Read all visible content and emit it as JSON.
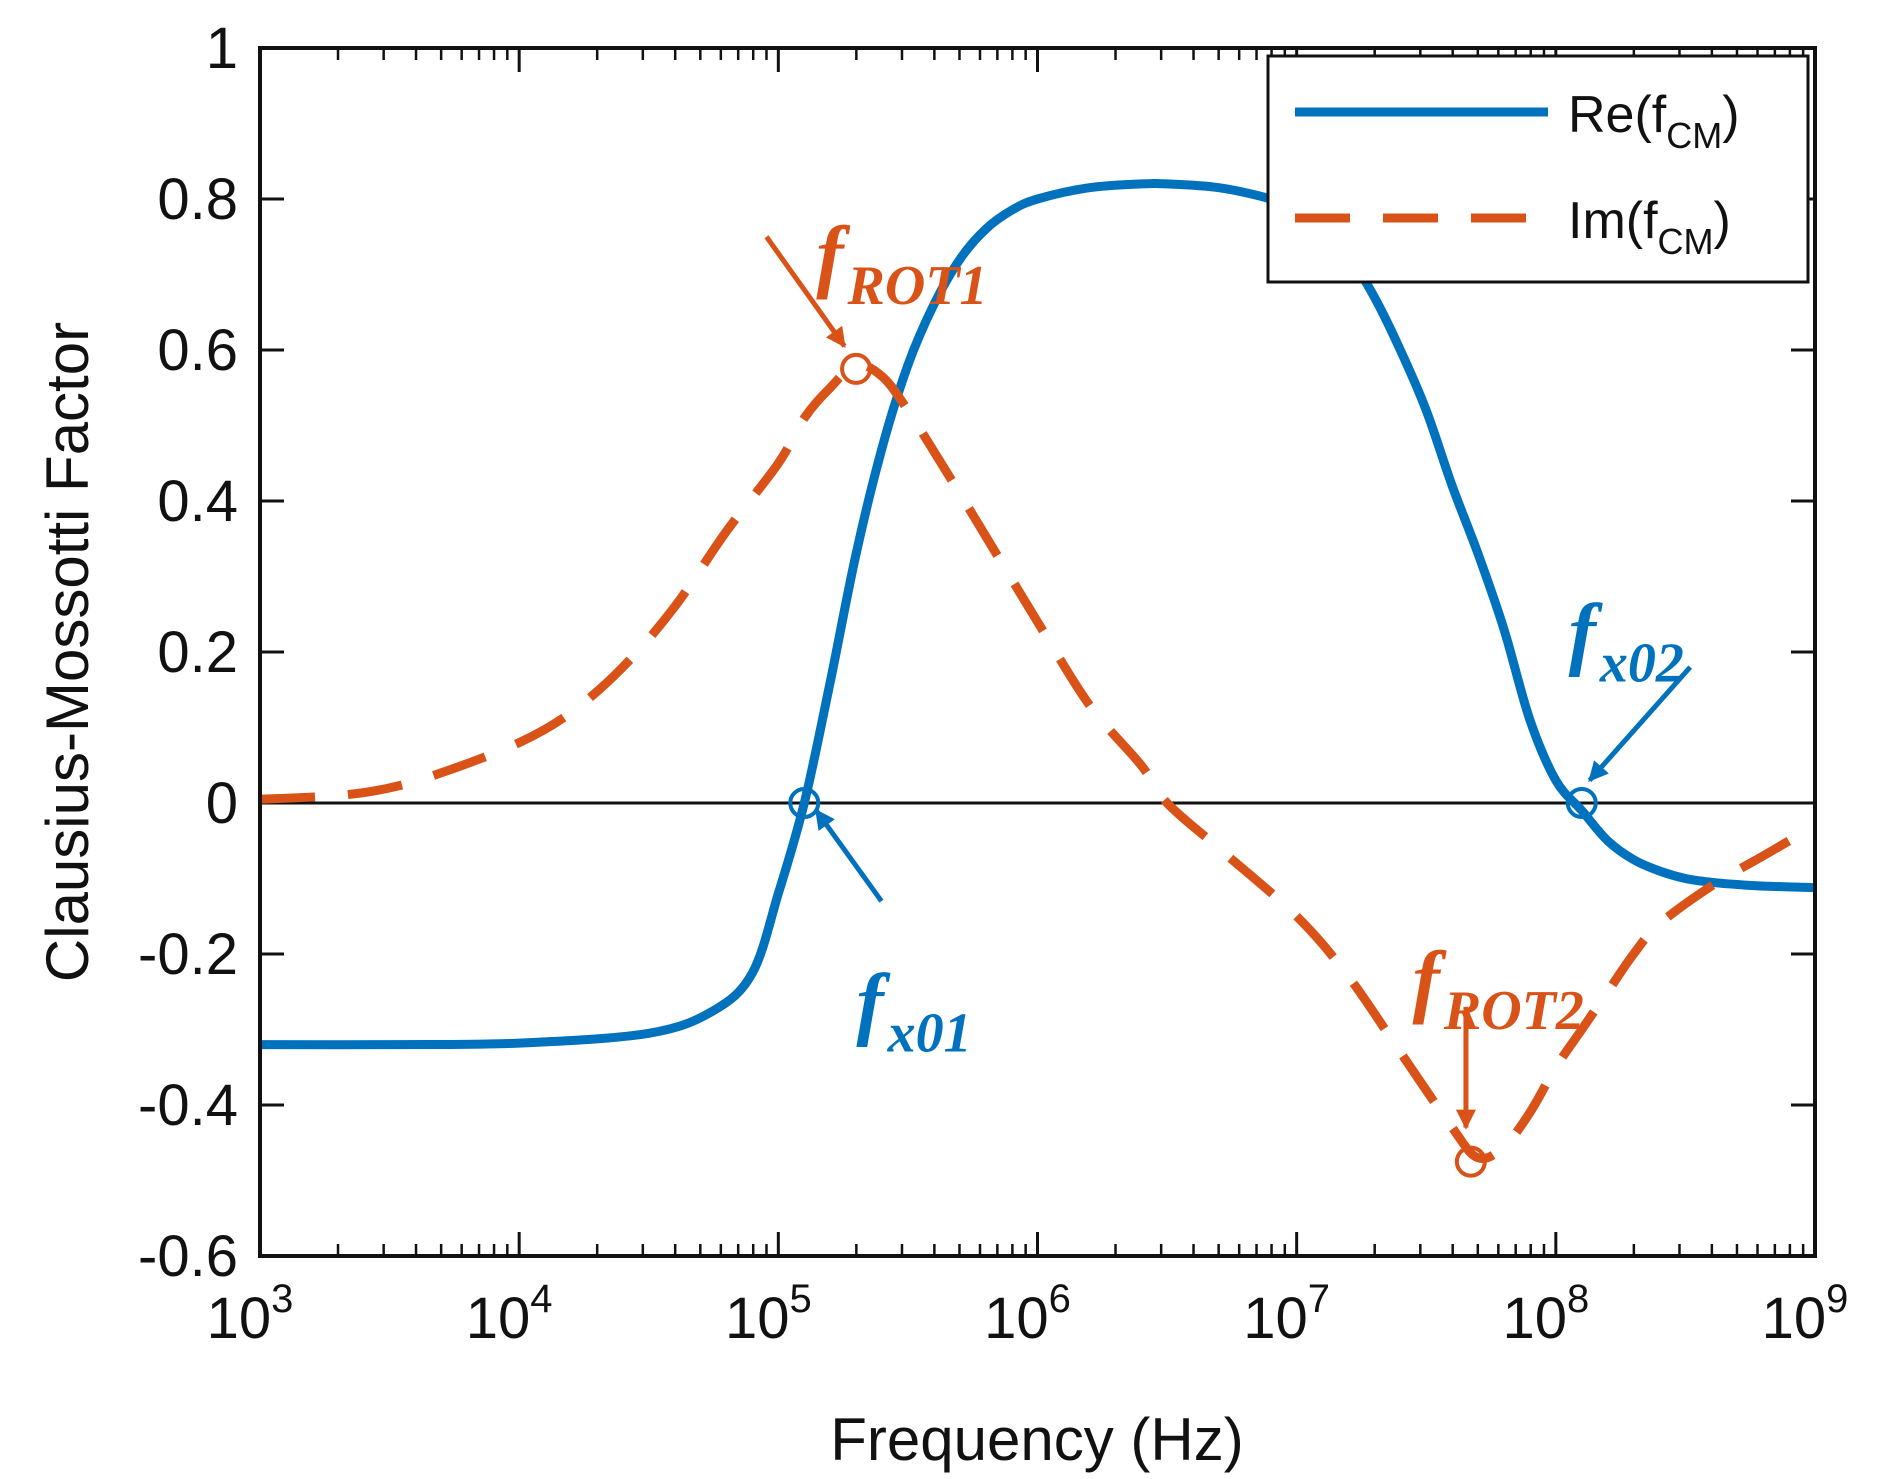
{
  "colors": {
    "re": "#0072BD",
    "im": "#D95319",
    "axis": "#111111"
  },
  "chart_data": {
    "type": "line",
    "xlabel": "Frequency (Hz)",
    "ylabel": "Clausius-Mossotti Factor",
    "xscale": "log",
    "xlim": [
      1000,
      1000000000
    ],
    "ylim": [
      -0.6,
      1
    ],
    "x_ticks": [
      {
        "value": 1000,
        "base": "10",
        "exp": "3"
      },
      {
        "value": 10000,
        "base": "10",
        "exp": "4"
      },
      {
        "value": 100000,
        "base": "10",
        "exp": "5"
      },
      {
        "value": 1000000,
        "base": "10",
        "exp": "6"
      },
      {
        "value": 10000000,
        "base": "10",
        "exp": "7"
      },
      {
        "value": 100000000,
        "base": "10",
        "exp": "8"
      },
      {
        "value": 1000000000,
        "base": "10",
        "exp": "9"
      }
    ],
    "y_ticks": [
      {
        "value": -0.6,
        "label": "-0.6"
      },
      {
        "value": -0.4,
        "label": "-0.4"
      },
      {
        "value": -0.2,
        "label": "-0.2"
      },
      {
        "value": 0,
        "label": "0"
      },
      {
        "value": 0.2,
        "label": "0.2"
      },
      {
        "value": 0.4,
        "label": "0.4"
      },
      {
        "value": 0.6,
        "label": "0.6"
      },
      {
        "value": 0.8,
        "label": "0.8"
      },
      {
        "value": 1,
        "label": "1"
      }
    ],
    "zero_line": true,
    "legend_position": "top-right",
    "series": [
      {
        "name_base": "Re(f",
        "name_sub": "CM",
        "name_end": ")",
        "style": "solid",
        "color": "#0072BD",
        "x": [
          1000,
          3162,
          10000,
          31623,
          56234,
          79433,
          100000,
          125900,
          158500,
          199500,
          251200,
          316200,
          398100,
          501200,
          631000,
          794300,
          1000000,
          1585000,
          2512000,
          3162000,
          5012000,
          7943000,
          10000000,
          12590000,
          15850000,
          19950000,
          25120000,
          31620000,
          39810000,
          50120000,
          63100000,
          79430000,
          100000000,
          125900000,
          158500000,
          199500000,
          251200000,
          316200000,
          398100000,
          501200000,
          631000000,
          1000000000
        ],
        "y": [
          -0.32,
          -0.32,
          -0.318,
          -0.305,
          -0.275,
          -0.225,
          -0.12,
          0.0,
          0.16,
          0.33,
          0.47,
          0.58,
          0.66,
          0.72,
          0.76,
          0.785,
          0.8,
          0.815,
          0.82,
          0.82,
          0.815,
          0.8,
          0.785,
          0.76,
          0.725,
          0.67,
          0.6,
          0.52,
          0.42,
          0.33,
          0.23,
          0.11,
          0.03,
          -0.01,
          -0.05,
          -0.075,
          -0.09,
          -0.1,
          -0.105,
          -0.108,
          -0.11,
          -0.112
        ]
      },
      {
        "name_base": "Im(f",
        "name_sub": "CM",
        "name_end": ")",
        "style": "dashed",
        "color": "#D95319",
        "x": [
          1000,
          2000,
          3162,
          5012,
          10000,
          15850,
          25120,
          39810,
          63100,
          100000,
          125900,
          158500,
          199500,
          251200,
          316200,
          501200,
          1000000,
          1585000,
          2512000,
          3162000,
          5012000,
          10000000,
          15850000,
          25120000,
          39810000,
          50120000,
          63100000,
          79430000,
          100000000,
          125900000,
          158500000,
          199500000,
          251200000,
          398100000,
          631000000,
          794300000
        ],
        "y": [
          0.005,
          0.01,
          0.02,
          0.04,
          0.08,
          0.12,
          0.18,
          0.26,
          0.36,
          0.45,
          0.51,
          0.55,
          0.58,
          0.565,
          0.52,
          0.41,
          0.24,
          0.13,
          0.05,
          0.0,
          -0.06,
          -0.15,
          -0.23,
          -0.33,
          -0.43,
          -0.47,
          -0.455,
          -0.41,
          -0.35,
          -0.3,
          -0.25,
          -0.2,
          -0.16,
          -0.11,
          -0.07,
          -0.05
        ]
      }
    ],
    "markers": [
      {
        "x": 199500,
        "y": 0.575,
        "color": "#D95319"
      },
      {
        "x": 125900,
        "y": 0.0,
        "color": "#0072BD"
      },
      {
        "x": 125900000,
        "y": 0.0,
        "color": "#0072BD"
      },
      {
        "x": 47000000,
        "y": -0.475,
        "color": "#D95319"
      }
    ],
    "annotations": [
      {
        "main": "f",
        "sub": "ROT1",
        "color": "#D95319",
        "text_x": 140000,
        "text_y": 0.69,
        "arrow_from": [
          90000,
          0.75
        ],
        "arrow_to": [
          180000,
          0.605
        ]
      },
      {
        "main": "f",
        "sub": "x01",
        "color": "#0072BD",
        "text_x": 200000,
        "text_y": -0.3,
        "arrow_from": [
          250000,
          -0.13
        ],
        "arrow_to": [
          140000,
          -0.01
        ]
      },
      {
        "main": "f",
        "sub": "x02",
        "color": "#0072BD",
        "text_x": 112000000,
        "text_y": 0.19,
        "arrow_from": [
          330000000,
          0.18
        ],
        "arrow_to": [
          135000000,
          0.03
        ]
      },
      {
        "main": "f",
        "sub": "ROT2",
        "color": "#D95319",
        "text_x": 28000000,
        "text_y": -0.27,
        "arrow_from": [
          45000000,
          -0.27
        ],
        "arrow_to": [
          45000000,
          -0.43
        ]
      }
    ]
  }
}
